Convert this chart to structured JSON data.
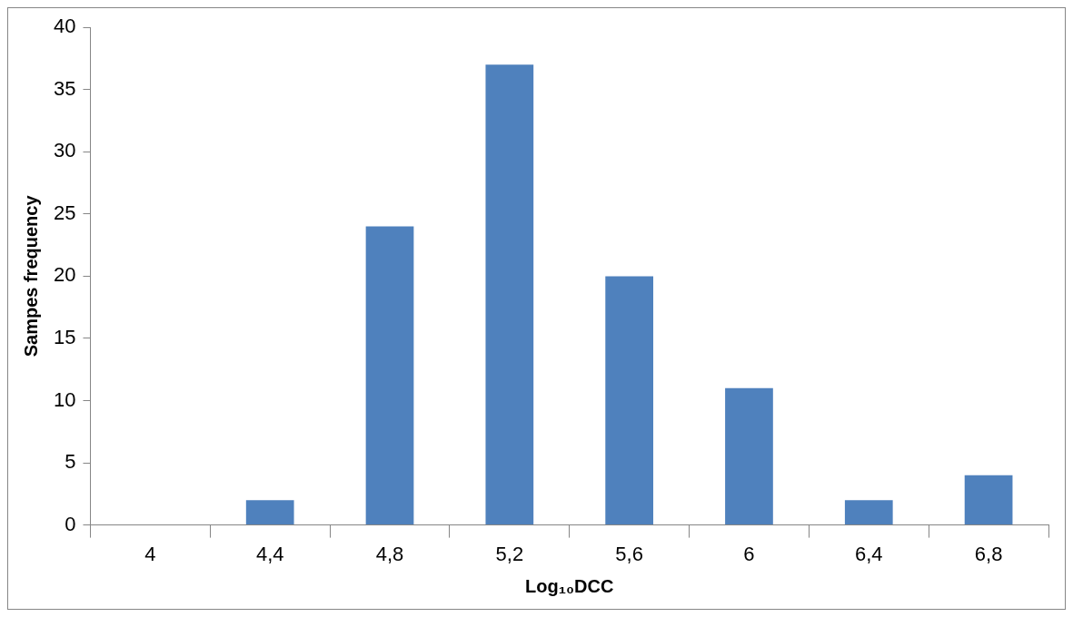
{
  "chart_data": {
    "type": "bar",
    "xlabel": "Log₁₀DCC",
    "ylabel": "Sampes frequency",
    "categories": [
      "4",
      "4,4",
      "4,8",
      "5,2",
      "5,6",
      "6",
      "6,4",
      "6,8"
    ],
    "values": [
      0,
      2,
      24,
      37,
      20,
      11,
      2,
      4
    ],
    "color": "#4f81bd",
    "ylim": [
      0,
      40
    ],
    "yticks": [
      0,
      5,
      10,
      15,
      20,
      25,
      30,
      35,
      40
    ],
    "grid": false,
    "legend": false
  }
}
